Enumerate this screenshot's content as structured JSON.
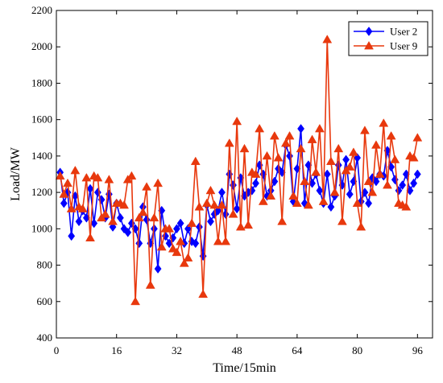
{
  "chart_data": {
    "type": "line",
    "title": "",
    "xlabel": "Time/15min",
    "ylabel": "Load/MW",
    "xlim": [
      0,
      100
    ],
    "ylim": [
      400,
      2200
    ],
    "xticks": [
      0,
      16,
      32,
      48,
      64,
      80,
      96
    ],
    "yticks": [
      400,
      600,
      800,
      1000,
      1200,
      1400,
      1600,
      1800,
      2000,
      2200
    ],
    "grid": false,
    "legend_position": "top-right",
    "x": [
      1,
      2,
      3,
      4,
      5,
      6,
      7,
      8,
      9,
      10,
      11,
      12,
      13,
      14,
      15,
      16,
      17,
      18,
      19,
      20,
      21,
      22,
      23,
      24,
      25,
      26,
      27,
      28,
      29,
      30,
      31,
      32,
      33,
      34,
      35,
      36,
      37,
      38,
      39,
      40,
      41,
      42,
      43,
      44,
      45,
      46,
      47,
      48,
      49,
      50,
      51,
      52,
      53,
      54,
      55,
      56,
      57,
      58,
      59,
      60,
      61,
      62,
      63,
      64,
      65,
      66,
      67,
      68,
      69,
      70,
      71,
      72,
      73,
      74,
      75,
      76,
      77,
      78,
      79,
      80,
      81,
      82,
      83,
      84,
      85,
      86,
      87,
      88,
      89,
      90,
      91,
      92,
      93,
      94,
      95,
      96
    ],
    "series": [
      {
        "name": "User 2",
        "color": "#0000ff",
        "marker": "diamond",
        "values": [
          1310,
          1140,
          1200,
          960,
          1180,
          1040,
          1100,
          1060,
          1220,
          1030,
          1200,
          1160,
          1060,
          1190,
          1010,
          1140,
          1060,
          1000,
          980,
          1030,
          1000,
          920,
          1120,
          1050,
          920,
          1000,
          780,
          1100,
          960,
          920,
          950,
          1000,
          1030,
          920,
          1000,
          930,
          920,
          1010,
          850,
          1130,
          1040,
          1080,
          1100,
          1200,
          1080,
          1300,
          1240,
          1110,
          1280,
          1180,
          1200,
          1210,
          1250,
          1350,
          1300,
          1180,
          1210,
          1260,
          1330,
          1310,
          1460,
          1400,
          1150,
          1330,
          1550,
          1140,
          1350,
          1250,
          1300,
          1210,
          1140,
          1300,
          1120,
          1180,
          1350,
          1240,
          1380,
          1190,
          1260,
          1390,
          1150,
          1200,
          1140,
          1280,
          1260,
          1300,
          1290,
          1430,
          1340,
          1270,
          1210,
          1240,
          1300,
          1210,
          1250,
          1300
        ]
      },
      {
        "name": "User 9",
        "color": "#e8380d",
        "marker": "triangle",
        "values": [
          1290,
          1190,
          1250,
          1110,
          1320,
          1120,
          1110,
          1280,
          950,
          1290,
          1280,
          1060,
          1080,
          1270,
          1040,
          1140,
          1140,
          1130,
          1270,
          1290,
          600,
          1060,
          1090,
          1230,
          690,
          1060,
          1250,
          900,
          1000,
          1000,
          890,
          870,
          930,
          810,
          840,
          1030,
          1370,
          1120,
          640,
          1140,
          1210,
          1130,
          930,
          1130,
          930,
          1470,
          1080,
          1590,
          1010,
          1440,
          1020,
          1310,
          1300,
          1550,
          1150,
          1400,
          1180,
          1510,
          1390,
          1040,
          1470,
          1510,
          1180,
          1140,
          1440,
          1260,
          1130,
          1490,
          1310,
          1550,
          1150,
          2040,
          1370,
          1200,
          1440,
          1040,
          1320,
          1340,
          1420,
          1140,
          1010,
          1540,
          1260,
          1200,
          1460,
          1300,
          1580,
          1240,
          1510,
          1380,
          1140,
          1130,
          1120,
          1400,
          1390,
          1500
        ]
      }
    ]
  }
}
